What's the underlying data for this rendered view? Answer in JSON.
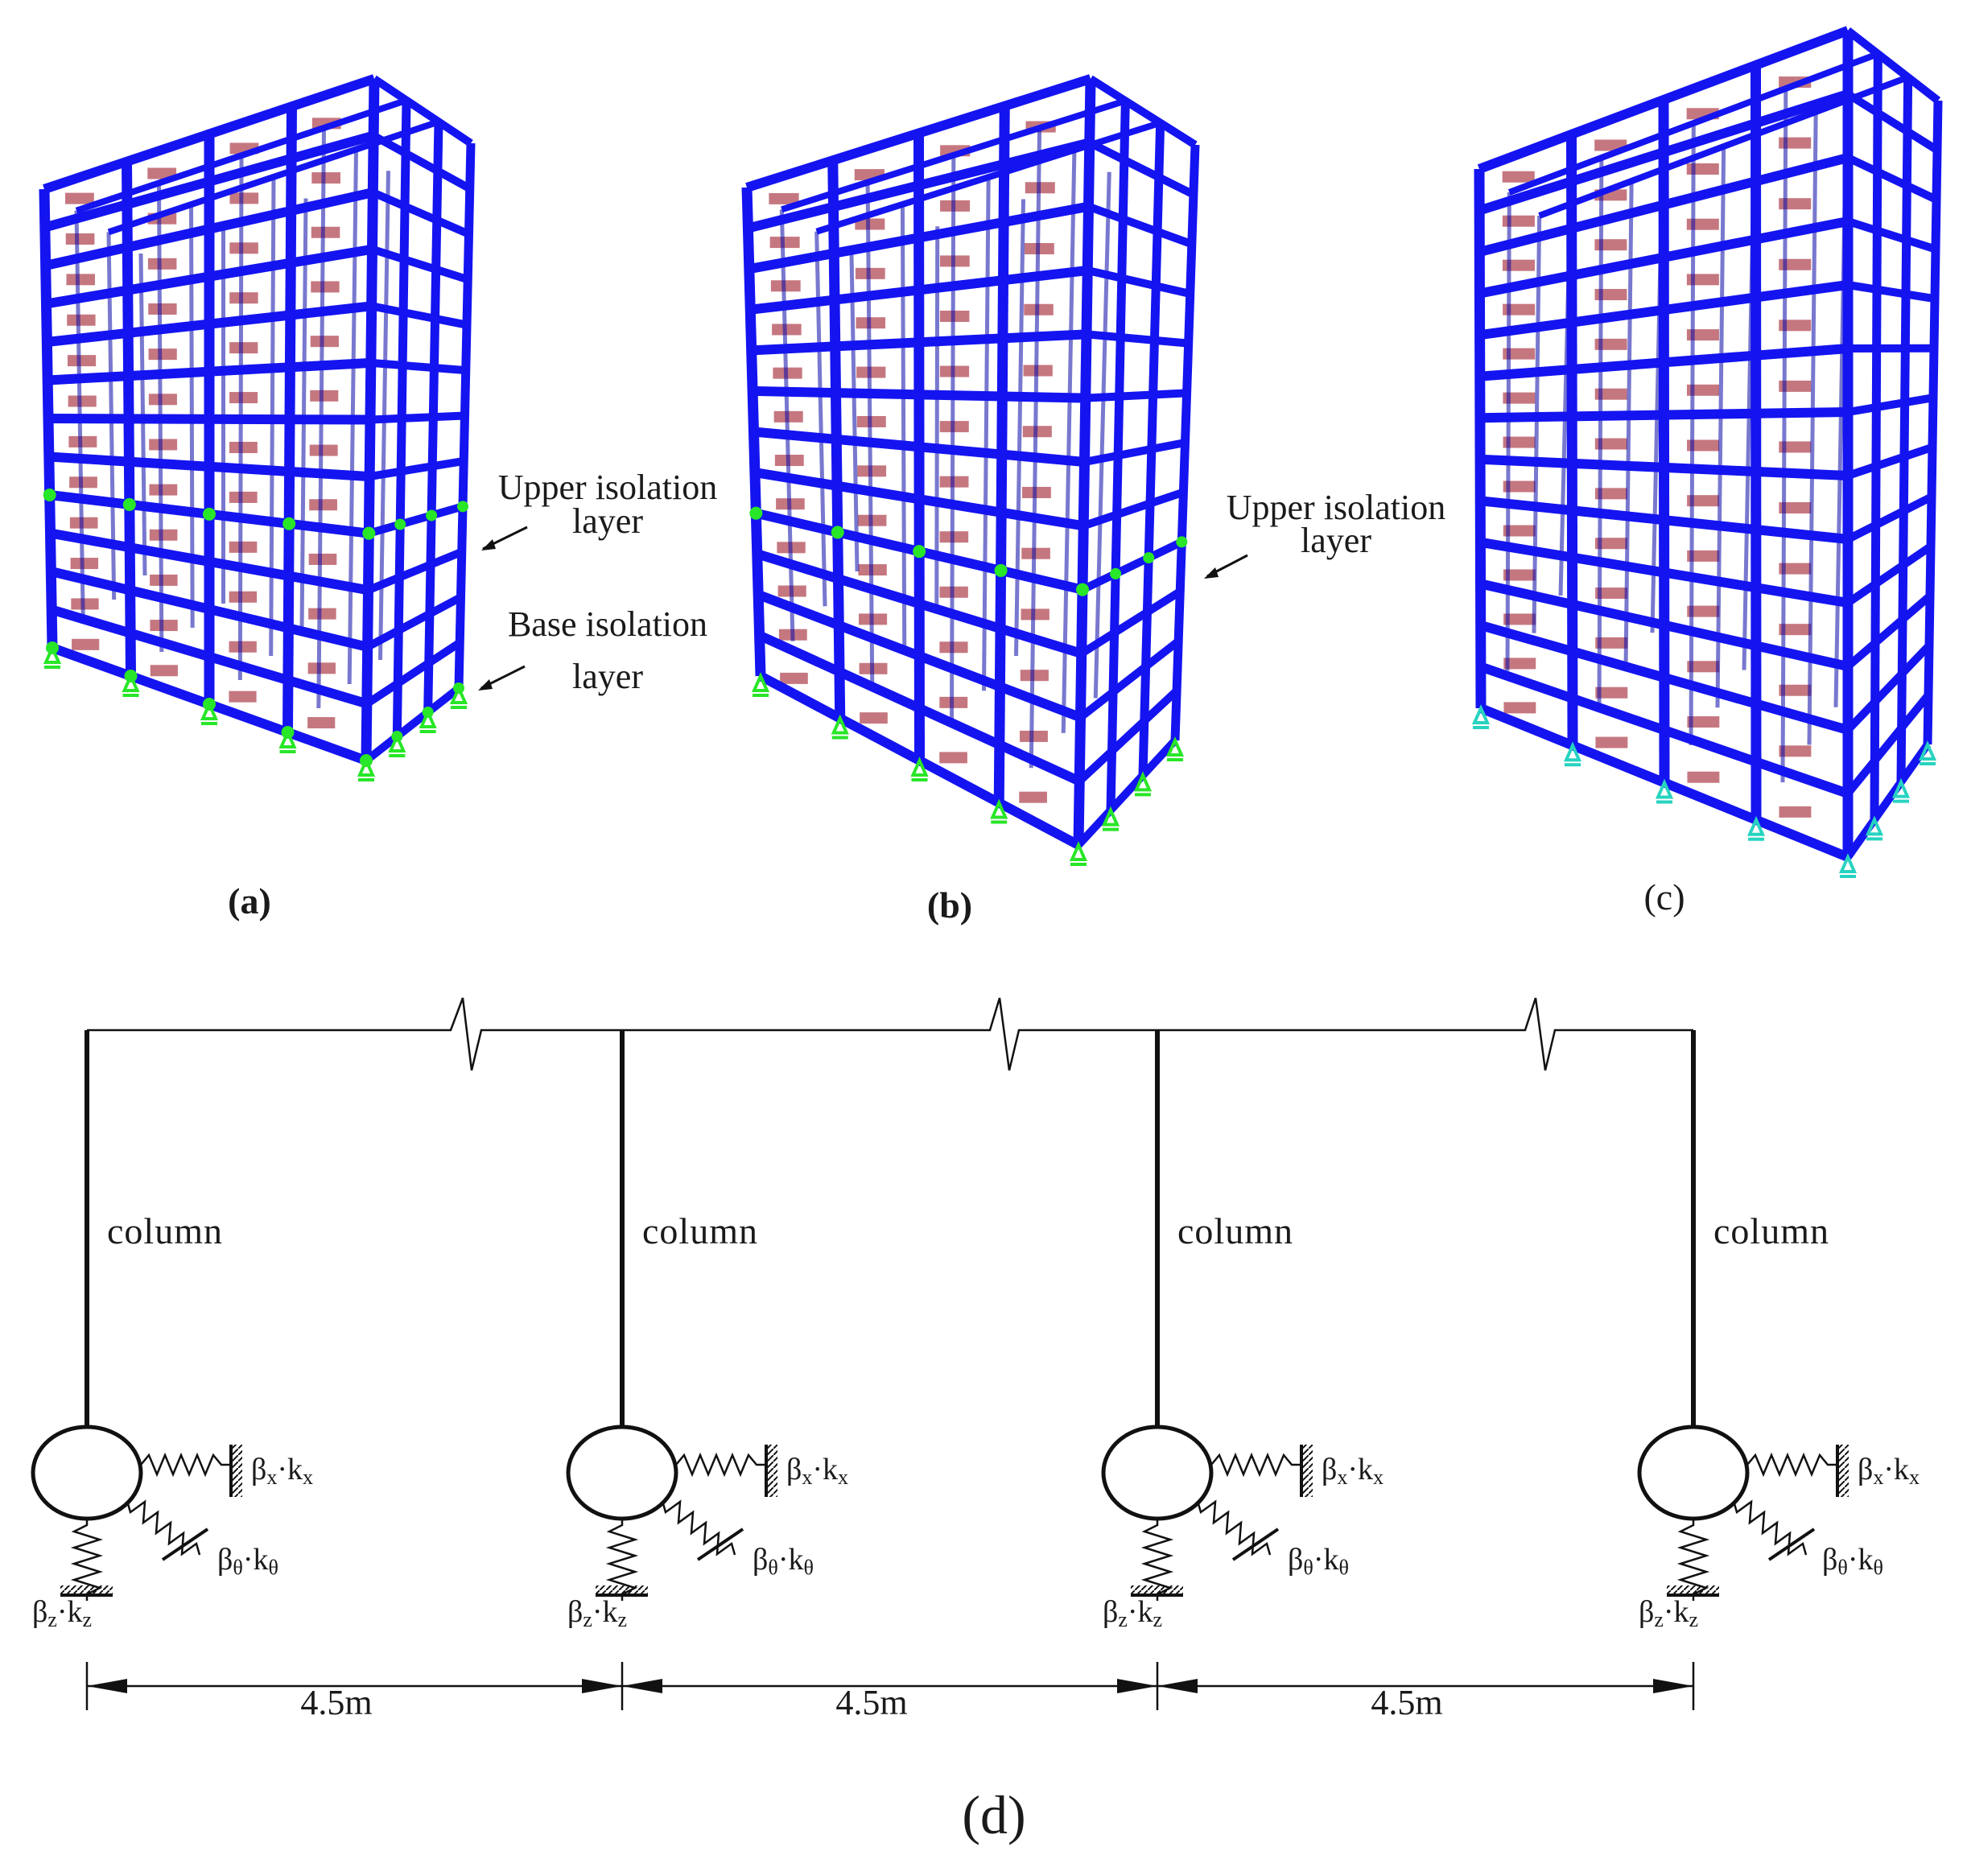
{
  "panels": {
    "a": {
      "label": "(a)",
      "annotations": [
        {
          "line1": "Upper isolation",
          "line2": "layer"
        },
        {
          "line1": "Base isolation",
          "line2": "layer"
        }
      ]
    },
    "b": {
      "label": "(b)",
      "annotations": [
        {
          "line1": "Upper isolation",
          "line2": "layer"
        }
      ]
    },
    "c": {
      "label": "(c)"
    },
    "d": {
      "label": "(d)"
    }
  },
  "diagram_d": {
    "column_label": "column",
    "spring_x": {
      "beta": "β",
      "beta_sub": "x",
      "dot": "·",
      "k": "k",
      "k_sub": "x"
    },
    "spring_theta": {
      "beta": "β",
      "beta_sub": "θ",
      "dot": "·",
      "k": "k",
      "k_sub": "θ"
    },
    "spring_z": {
      "beta": "β",
      "beta_sub": "z",
      "dot": "·",
      "k": "k",
      "k_sub": "z"
    },
    "spans": [
      "4.5m",
      "4.5m",
      "4.5m"
    ],
    "column_count": 4
  },
  "colors": {
    "frame": "#1414f0",
    "frame_dark": "#0a0aa8",
    "slab": "#b24a55",
    "isolator": "#28e628",
    "line": "#111111"
  }
}
